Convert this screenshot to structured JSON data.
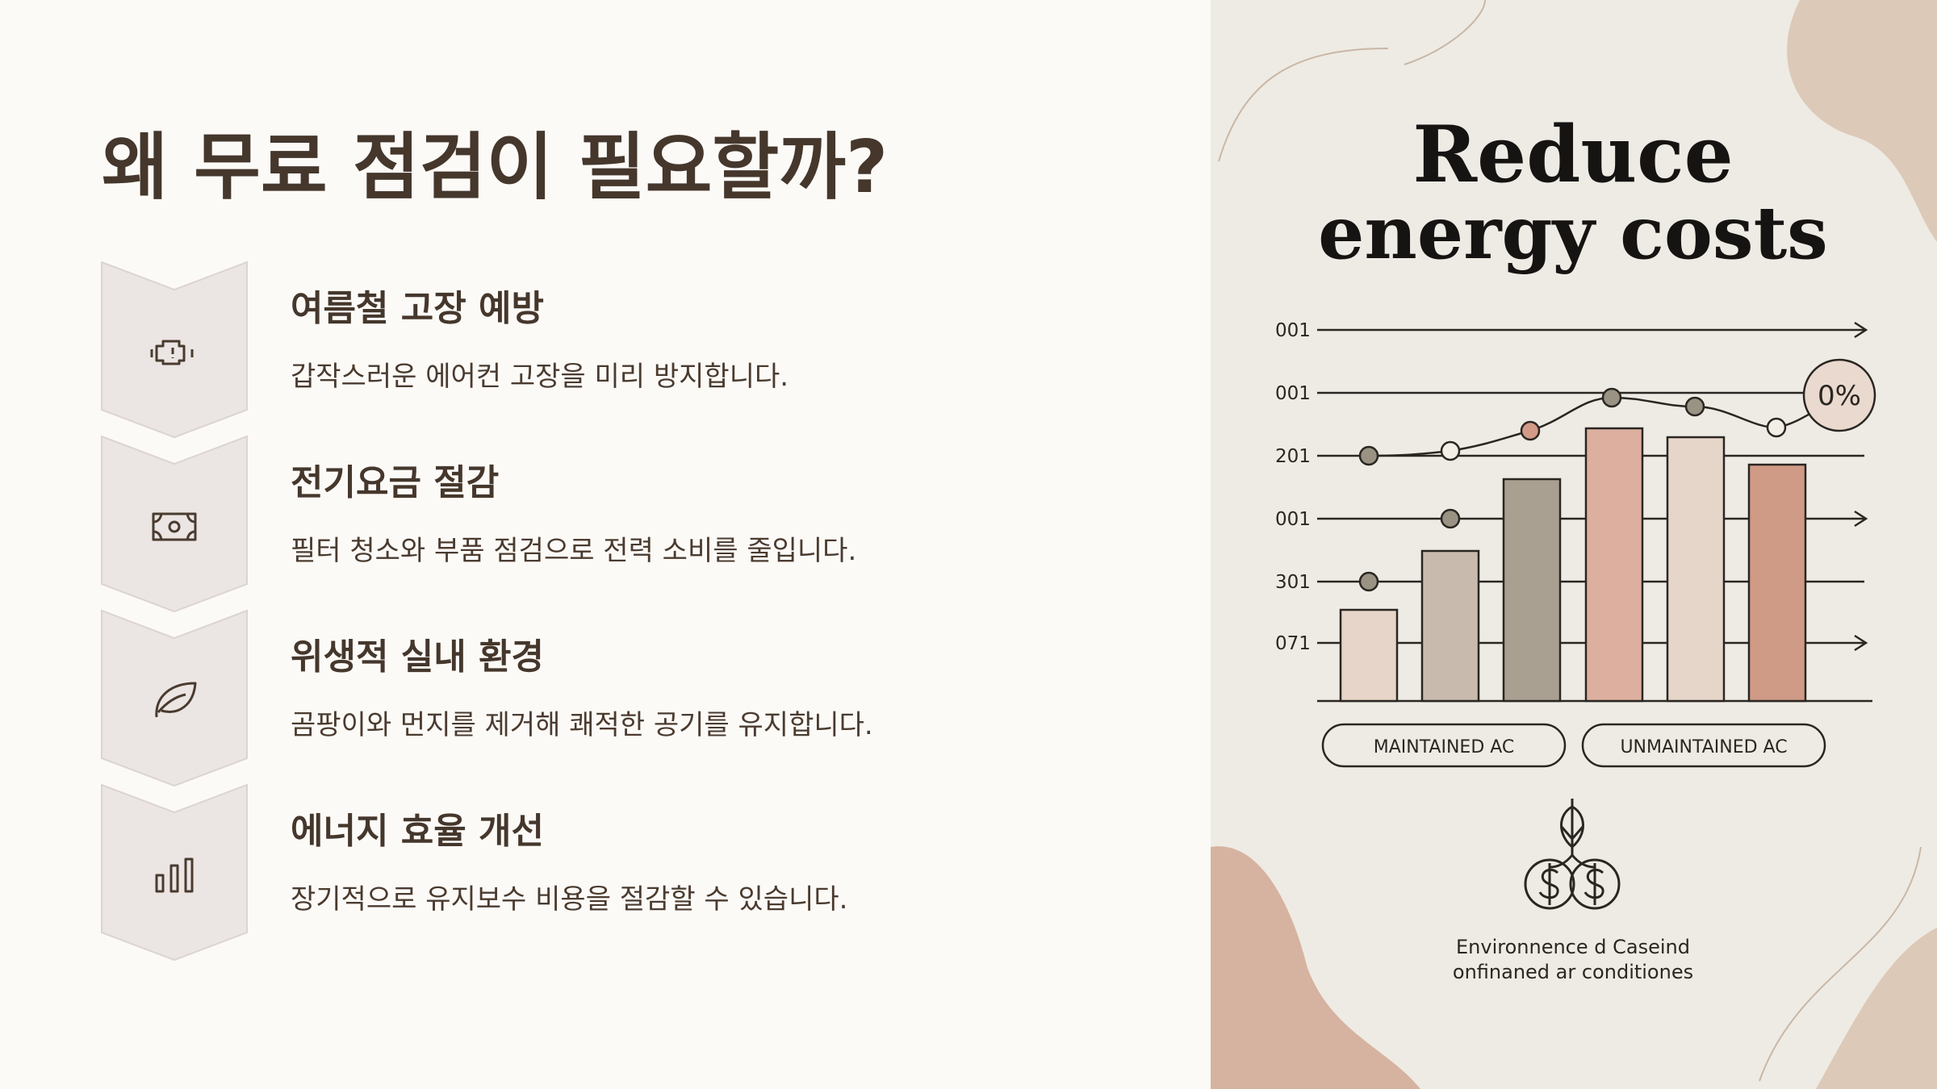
{
  "header": {
    "title": "왜 무료 점검이 필요할까?"
  },
  "items": [
    {
      "heading": "여름철 고장 예방",
      "description": "갑작스러운 에어컨 고장을 미리 방지합니다."
    },
    {
      "heading": "전기요금 절감",
      "description": "필터 청소와 부품 점검으로 전력 소비를 줄입니다."
    },
    {
      "heading": "위생적 실내 환경",
      "description": "곰팡이와 먼지를 제거해 쾌적한 공기를 유지합니다."
    },
    {
      "heading": "에너지 효율 개선",
      "description": "장기적으로 유지보수 비용을 절감할 수 있습니다."
    }
  ],
  "illustration": {
    "title_lines": [
      "Reduce",
      "energy costs"
    ],
    "axis_labels": [
      "001",
      "001",
      "201",
      "001",
      "301",
      "071"
    ],
    "badge": "0%",
    "legend": [
      "MAINTAINED AC",
      "UNMAINTAINED AC"
    ],
    "caption_lines": [
      "Environnence d Caseind",
      "onfinaned ar conditiones"
    ]
  }
}
